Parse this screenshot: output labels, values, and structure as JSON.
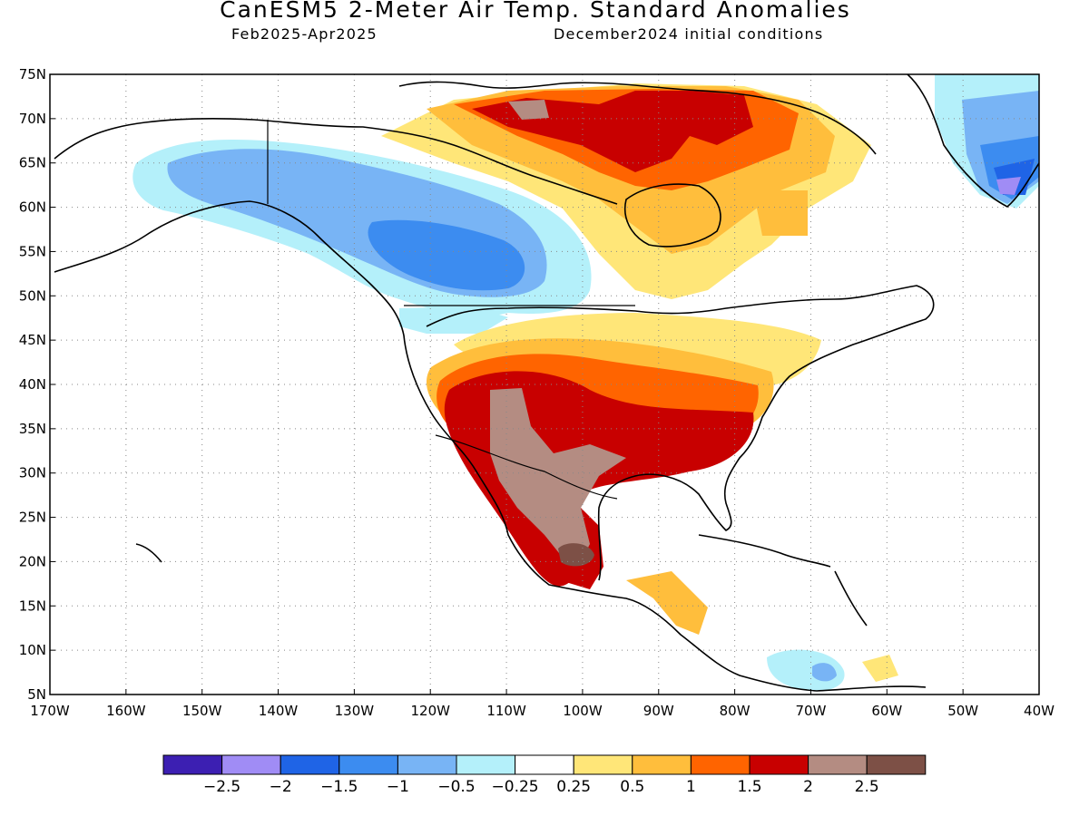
{
  "header": {
    "title": "CanESM5 2-Meter Air Temp. Standard Anomalies",
    "period": "Feb2025-Apr2025",
    "init": "December2024 initial conditions"
  },
  "map": {
    "lon_range": [
      -170,
      -40
    ],
    "lat_range": [
      5,
      75
    ],
    "lat_labels": [
      "75N",
      "70N",
      "65N",
      "60N",
      "55N",
      "50N",
      "45N",
      "40N",
      "35N",
      "30N",
      "25N",
      "20N",
      "15N",
      "10N",
      "5N"
    ],
    "lon_labels": [
      "170W",
      "160W",
      "150W",
      "140W",
      "130W",
      "120W",
      "110W",
      "100W",
      "90W",
      "80W",
      "70W",
      "60W",
      "50W",
      "40W"
    ],
    "grid": "dotted",
    "anomaly_regions": [
      {
        "region": "Alaska / NW Canada",
        "category": "-1 to -0.5"
      },
      {
        "region": "Western Canada core",
        "category": "-1.5 to -1"
      },
      {
        "region": "Northern Quebec / Nunavut",
        "category": "1.5 to 2"
      },
      {
        "region": "Southern Greenland",
        "category": "-2 to -1.5"
      },
      {
        "region": "Southwest US / Southern Plains",
        "category": "1.5 to 2"
      },
      {
        "region": "Northern Mexico",
        "category": "2 to 2.5"
      },
      {
        "region": "Central Mexico",
        "category": "> 2.5"
      },
      {
        "region": "Eastern US",
        "category": "1 to 1.5"
      },
      {
        "region": "Great Lakes / Northeast",
        "category": "0.25 to 1"
      },
      {
        "region": "Caribbean near Venezuela",
        "category": "-0.5 to -0.25"
      }
    ]
  },
  "colorbar": {
    "colors": [
      "#3c1fb2",
      "#a08cf5",
      "#1f64e6",
      "#3c8cf0",
      "#78b4f5",
      "#b4f0fa",
      "#ffffff",
      "#ffe678",
      "#ffbe3c",
      "#ff6400",
      "#c80000",
      "#b48c82",
      "#7d5046"
    ],
    "labels": [
      "-2.5",
      "-2",
      "-1.5",
      "-1",
      "-0.5",
      "-0.25",
      "0.25",
      "0.5",
      "1",
      "1.5",
      "2",
      "2.5"
    ]
  }
}
